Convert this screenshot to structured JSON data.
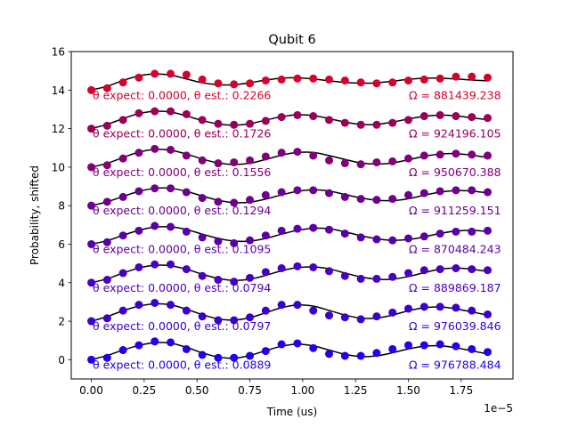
{
  "chart_data": {
    "type": "scatter",
    "title": "Qubit 6",
    "xlabel": "Time (us)",
    "ylabel": "Probability, shifted",
    "x_multiplier_label": "1e−5",
    "xlim": [
      -0.095,
      1.995
    ],
    "ylim": [
      -1,
      16
    ],
    "x_ticks": [
      0.0,
      0.25,
      0.5,
      0.75,
      1.0,
      1.25,
      1.5,
      1.75
    ],
    "x_tick_labels": [
      "0.00",
      "0.25",
      "0.50",
      "0.75",
      "1.00",
      "1.25",
      "1.50",
      "1.75"
    ],
    "y_ticks": [
      0,
      2,
      4,
      6,
      8,
      10,
      12,
      14,
      16
    ],
    "y_tick_labels": [
      "0",
      "2",
      "4",
      "6",
      "8",
      "10",
      "12",
      "14",
      "16"
    ],
    "grid": false,
    "x": [
      0.0,
      0.075,
      0.15,
      0.225,
      0.3,
      0.375,
      0.45,
      0.525,
      0.6,
      0.675,
      0.75,
      0.825,
      0.9,
      0.975,
      1.05,
      1.125,
      1.2,
      1.275,
      1.35,
      1.425,
      1.5,
      1.575,
      1.65,
      1.725,
      1.8,
      1.875
    ],
    "series": [
      {
        "offset": 0,
        "color": "#1f00f0",
        "values": [
          0.0,
          0.1,
          0.5,
          0.75,
          0.95,
          0.9,
          0.55,
          0.25,
          0.1,
          0.1,
          0.2,
          0.45,
          0.8,
          0.85,
          0.6,
          0.3,
          0.2,
          0.2,
          0.35,
          0.55,
          0.75,
          0.75,
          0.8,
          0.7,
          0.55,
          0.4
        ],
        "fit": [
          0.0,
          0.22,
          0.5,
          0.74,
          0.88,
          0.86,
          0.64,
          0.36,
          0.14,
          0.08,
          0.22,
          0.47,
          0.7,
          0.81,
          0.72,
          0.5,
          0.28,
          0.16,
          0.2,
          0.36,
          0.56,
          0.7,
          0.72,
          0.62,
          0.46,
          0.3
        ],
        "label_left": "θ expect: 0.0000, θ est.: 0.0889",
        "label_right": "Ω = 976788.484"
      },
      {
        "offset": 2,
        "color": "#3a00d0",
        "values": [
          2.0,
          2.15,
          2.55,
          2.85,
          2.95,
          2.85,
          2.55,
          2.25,
          2.05,
          2.05,
          2.2,
          2.55,
          2.85,
          2.85,
          2.55,
          2.3,
          2.2,
          2.1,
          2.25,
          2.45,
          2.65,
          2.75,
          2.75,
          2.7,
          2.55,
          2.35
        ],
        "fit": [
          2.0,
          2.24,
          2.54,
          2.78,
          2.9,
          2.85,
          2.62,
          2.34,
          2.12,
          2.06,
          2.18,
          2.44,
          2.7,
          2.84,
          2.78,
          2.56,
          2.32,
          2.16,
          2.16,
          2.32,
          2.54,
          2.7,
          2.74,
          2.64,
          2.48,
          2.32
        ],
        "label_left": "θ expect: 0.0000, θ est.: 0.0797",
        "label_right": "Ω = 976039.846"
      },
      {
        "offset": 4,
        "color": "#4a00c0",
        "values": [
          4.0,
          4.15,
          4.5,
          4.8,
          4.95,
          4.95,
          4.7,
          4.35,
          4.15,
          4.05,
          4.25,
          4.55,
          4.75,
          4.85,
          4.8,
          4.6,
          4.35,
          4.2,
          4.2,
          4.3,
          4.5,
          4.65,
          4.7,
          4.75,
          4.7,
          4.65
        ],
        "fit": [
          4.0,
          4.2,
          4.5,
          4.76,
          4.9,
          4.88,
          4.7,
          4.44,
          4.22,
          4.12,
          4.18,
          4.38,
          4.62,
          4.78,
          4.82,
          4.72,
          4.5,
          4.3,
          4.18,
          4.18,
          4.32,
          4.52,
          4.7,
          4.76,
          4.7,
          4.58
        ],
        "label_left": "θ expect: 0.0000, θ est.: 0.0794",
        "label_right": "Ω = 889869.187"
      },
      {
        "offset": 6,
        "color": "#5a00a8",
        "values": [
          6.0,
          6.1,
          6.45,
          6.7,
          6.95,
          6.9,
          6.65,
          6.35,
          6.15,
          6.05,
          6.2,
          6.45,
          6.7,
          6.8,
          6.85,
          6.75,
          6.55,
          6.35,
          6.25,
          6.2,
          6.3,
          6.4,
          6.55,
          6.65,
          6.65,
          6.7
        ],
        "fit": [
          6.0,
          6.18,
          6.46,
          6.72,
          6.88,
          6.9,
          6.76,
          6.52,
          6.3,
          6.16,
          6.16,
          6.3,
          6.52,
          6.72,
          6.82,
          6.8,
          6.64,
          6.44,
          6.28,
          6.2,
          6.24,
          6.38,
          6.56,
          6.68,
          6.72,
          6.66
        ],
        "label_left": "θ expect: 0.0000, θ est.: 0.1095",
        "label_right": "Ω = 870484.243"
      },
      {
        "offset": 8,
        "color": "#6e0090",
        "values": [
          8.0,
          8.2,
          8.45,
          8.75,
          8.9,
          8.9,
          8.7,
          8.4,
          8.2,
          8.15,
          8.3,
          8.55,
          8.7,
          8.8,
          8.8,
          8.65,
          8.45,
          8.35,
          8.3,
          8.35,
          8.55,
          8.65,
          8.75,
          8.8,
          8.8,
          8.7
        ],
        "fit": [
          8.0,
          8.2,
          8.48,
          8.74,
          8.9,
          8.9,
          8.74,
          8.5,
          8.28,
          8.16,
          8.18,
          8.34,
          8.56,
          8.74,
          8.82,
          8.76,
          8.58,
          8.4,
          8.28,
          8.26,
          8.36,
          8.54,
          8.7,
          8.78,
          8.76,
          8.66
        ],
        "label_left": "θ expect: 0.0000, θ est.: 0.1294",
        "label_right": "Ω = 911259.151"
      },
      {
        "offset": 10,
        "color": "#820078",
        "values": [
          10.0,
          10.1,
          10.45,
          10.75,
          10.95,
          10.9,
          10.6,
          10.35,
          10.2,
          10.25,
          10.35,
          10.55,
          10.75,
          10.8,
          10.6,
          10.35,
          10.2,
          10.15,
          10.25,
          10.3,
          10.45,
          10.6,
          10.65,
          10.7,
          10.65,
          10.6
        ],
        "fit": [
          10.0,
          10.2,
          10.5,
          10.78,
          10.92,
          10.88,
          10.68,
          10.42,
          10.22,
          10.14,
          10.2,
          10.4,
          10.62,
          10.76,
          10.76,
          10.6,
          10.4,
          10.22,
          10.16,
          10.22,
          10.38,
          10.56,
          10.68,
          10.7,
          10.62,
          10.5
        ],
        "label_left": "θ expect: 0.0000, θ est.: 0.1556",
        "label_right": "Ω = 950670.388"
      },
      {
        "offset": 12,
        "color": "#9a0058",
        "values": [
          12.0,
          12.15,
          12.45,
          12.8,
          12.9,
          12.9,
          12.75,
          12.45,
          12.25,
          12.2,
          12.25,
          12.4,
          12.6,
          12.7,
          12.65,
          12.45,
          12.3,
          12.2,
          12.2,
          12.3,
          12.45,
          12.65,
          12.7,
          12.65,
          12.6,
          12.55
        ],
        "fit": [
          12.0,
          12.22,
          12.52,
          12.78,
          12.9,
          12.86,
          12.66,
          12.42,
          12.24,
          12.18,
          12.26,
          12.44,
          12.62,
          12.72,
          12.68,
          12.52,
          12.34,
          12.22,
          12.22,
          12.34,
          12.5,
          12.64,
          12.7,
          12.66,
          12.56,
          12.46
        ],
        "label_left": "θ expect: 0.0000, θ est.: 0.1726",
        "label_right": "Ω = 924196.105"
      },
      {
        "offset": 14,
        "color": "#d8002c",
        "values": [
          14.0,
          14.1,
          14.4,
          14.65,
          14.85,
          14.85,
          14.8,
          14.55,
          14.35,
          14.3,
          14.35,
          14.5,
          14.55,
          14.6,
          14.6,
          14.55,
          14.5,
          14.4,
          14.35,
          14.4,
          14.5,
          14.55,
          14.6,
          14.7,
          14.7,
          14.65
        ],
        "fit": [
          14.0,
          14.2,
          14.5,
          14.74,
          14.84,
          14.78,
          14.58,
          14.38,
          14.28,
          14.28,
          14.38,
          14.52,
          14.62,
          14.64,
          14.58,
          14.48,
          14.4,
          14.36,
          14.38,
          14.46,
          14.56,
          14.62,
          14.62,
          14.58,
          14.52,
          14.48
        ],
        "label_left": "θ expect: 0.0000, θ est.: 0.2266",
        "label_right": "Ω = 881439.238"
      }
    ]
  }
}
